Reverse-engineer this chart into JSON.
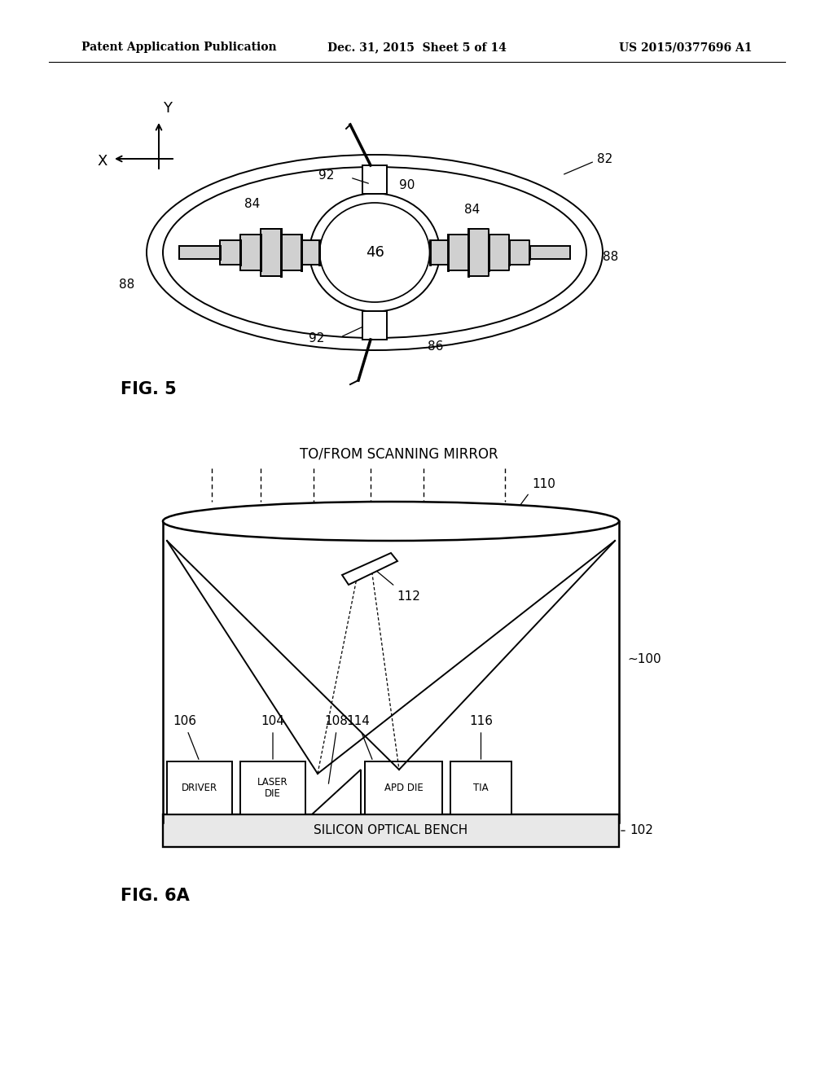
{
  "background_color": "#ffffff",
  "header_left": "Patent Application Publication",
  "header_center": "Dec. 31, 2015  Sheet 5 of 14",
  "header_right": "US 2015/0377696 A1",
  "fig5_label": "FIG. 5",
  "fig6a_label": "FIG. 6A"
}
